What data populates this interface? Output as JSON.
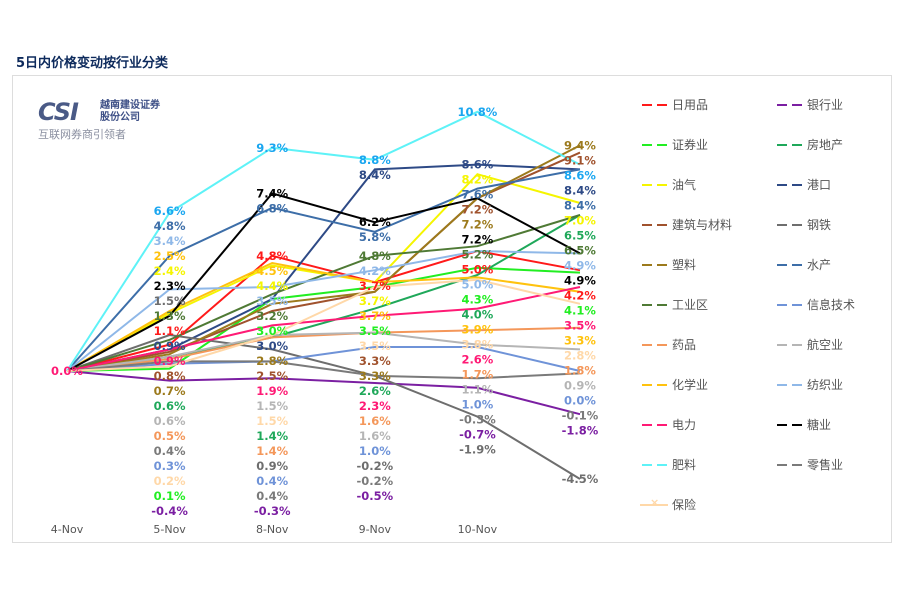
{
  "title": "5日内价格变动按行业分类",
  "logo": {
    "brand": "CSI",
    "name_line1": "越南建设证券",
    "name_line2": "股份公司",
    "slogan": "互联网券商引领者"
  },
  "chart_data": {
    "type": "line",
    "title": "5日内价格变动按行业分类",
    "categories": [
      "4-Nov",
      "5-Nov",
      "8-Nov",
      "9-Nov",
      "10-Nov",
      ""
    ],
    "unit": "%",
    "legend_position": "right",
    "grid": false,
    "ylim": [
      -5,
      11
    ],
    "series": [
      {
        "name": "日用品",
        "color": "#ff1a1a",
        "values": [
          0,
          1.1,
          4.8,
          3.7,
          5.0,
          4.2
        ]
      },
      {
        "name": "银行业",
        "color": "#7b1fa2",
        "values": [
          0,
          -0.4,
          -0.3,
          -0.5,
          -0.7,
          -1.8
        ]
      },
      {
        "name": "证券业",
        "color": "#22ee22",
        "values": [
          0,
          0.1,
          3.0,
          3.5,
          4.3,
          4.1
        ]
      },
      {
        "name": "房地产",
        "color": "#1fa85a",
        "values": [
          0,
          0.6,
          1.4,
          2.6,
          4.0,
          6.5
        ]
      },
      {
        "name": "油气",
        "color": "#f5f500",
        "values": [
          0,
          2.4,
          4.4,
          3.7,
          8.2,
          7.0
        ]
      },
      {
        "name": "港口",
        "color": "#2e4a86",
        "values": [
          0,
          0.9,
          3.0,
          8.4,
          8.6,
          8.4
        ]
      },
      {
        "name": "建筑与材料",
        "color": "#a0522d",
        "values": [
          0,
          0.8,
          2.5,
          3.3,
          7.2,
          9.1
        ]
      },
      {
        "name": "钢铁",
        "color": "#6e6e6e",
        "values": [
          0,
          1.5,
          0.9,
          -0.2,
          -1.9,
          -4.5
        ]
      },
      {
        "name": "塑料",
        "color": "#9c7a1c",
        "values": [
          0,
          0.7,
          2.8,
          3.3,
          7.2,
          9.4
        ]
      },
      {
        "name": "水产",
        "color": "#3d6ea8",
        "values": [
          0,
          4.8,
          6.8,
          5.8,
          7.6,
          8.4
        ]
      },
      {
        "name": "工业区",
        "color": "#4f7a35",
        "values": [
          0,
          1.3,
          3.2,
          4.8,
          5.2,
          6.5
        ]
      },
      {
        "name": "信息技术",
        "color": "#6f93d8",
        "values": [
          0,
          0.3,
          0.4,
          1.0,
          1.0,
          0.0
        ]
      },
      {
        "name": "药品",
        "color": "#f4975a",
        "values": [
          0,
          0.5,
          1.4,
          1.6,
          1.7,
          1.8
        ]
      },
      {
        "name": "航空业",
        "color": "#b5b5b5",
        "values": [
          0,
          0.6,
          1.5,
          1.6,
          1.1,
          0.9
        ]
      },
      {
        "name": "化学业",
        "color": "#ffc20e",
        "values": [
          0,
          2.5,
          4.5,
          3.7,
          3.9,
          3.3
        ]
      },
      {
        "name": "纺织业",
        "color": "#8fb8e8",
        "values": [
          0,
          3.4,
          3.5,
          4.2,
          5.0,
          4.9
        ]
      },
      {
        "name": "电力",
        "color": "#ff1a75",
        "values": [
          0,
          0.9,
          1.9,
          2.3,
          2.6,
          3.5
        ]
      },
      {
        "name": "糖业",
        "color": "#000000",
        "values": [
          0,
          2.3,
          7.4,
          6.2,
          7.2,
          4.9
        ]
      },
      {
        "name": "肥料",
        "color": "#5ef2f7",
        "label_color": "#1aa6f0",
        "values": [
          0,
          6.6,
          9.3,
          8.8,
          10.8,
          8.6
        ]
      },
      {
        "name": "零售业",
        "color": "#7a7a7a",
        "values": [
          0,
          0.4,
          0.4,
          -0.2,
          -0.3,
          -0.1
        ]
      },
      {
        "name": "保险",
        "color": "#ffd8a8",
        "marker": "x",
        "values": [
          0,
          0.2,
          1.5,
          3.5,
          3.8,
          2.8
        ]
      }
    ]
  }
}
